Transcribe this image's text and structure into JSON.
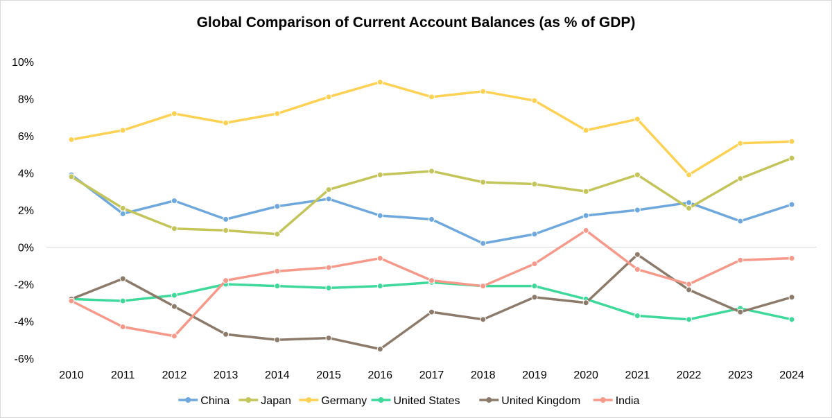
{
  "chart_data": {
    "type": "line",
    "title": "Global Comparison of Current Account Balances (as % of GDP)",
    "xlabel": "",
    "ylabel": "",
    "categories": [
      "2010",
      "2011",
      "2012",
      "2013",
      "2014",
      "2015",
      "2016",
      "2017",
      "2018",
      "2019",
      "2020",
      "2021",
      "2022",
      "2023",
      "2024"
    ],
    "y_ticks": [
      "10%",
      "8%",
      "6%",
      "4%",
      "2%",
      "0%",
      "-2%",
      "-4%",
      "-6%"
    ],
    "ylim": [
      -6,
      10
    ],
    "grid": false,
    "zero_line": true,
    "legend_position": "bottom",
    "series": [
      {
        "name": "China",
        "color": "#6fa8dc",
        "values": [
          3.9,
          1.8,
          2.5,
          1.5,
          2.2,
          2.6,
          1.7,
          1.5,
          0.2,
          0.7,
          1.7,
          2.0,
          2.4,
          1.4,
          2.3
        ]
      },
      {
        "name": "Japan",
        "color": "#c3c45a",
        "values": [
          3.8,
          2.1,
          1.0,
          0.9,
          0.7,
          3.1,
          3.9,
          4.1,
          3.5,
          3.4,
          3.0,
          3.9,
          2.1,
          3.7,
          4.8
        ]
      },
      {
        "name": "Germany",
        "color": "#fdd154",
        "values": [
          5.8,
          6.3,
          7.2,
          6.7,
          7.2,
          8.1,
          8.9,
          8.1,
          8.4,
          7.9,
          6.3,
          6.9,
          3.9,
          5.6,
          5.7
        ]
      },
      {
        "name": "United States",
        "color": "#3fd89b",
        "values": [
          -2.8,
          -2.9,
          -2.6,
          -2.0,
          -2.1,
          -2.2,
          -2.1,
          -1.9,
          -2.1,
          -2.1,
          -2.8,
          -3.7,
          -3.9,
          -3.3,
          -3.9
        ]
      },
      {
        "name": "United Kingdom",
        "color": "#8c7b6b",
        "values": [
          -2.8,
          -1.7,
          -3.2,
          -4.7,
          -5.0,
          -4.9,
          -5.5,
          -3.5,
          -3.9,
          -2.7,
          -3.0,
          -0.4,
          -2.3,
          -3.5,
          -2.7
        ]
      },
      {
        "name": "India",
        "color": "#f59a8a",
        "values": [
          -2.9,
          -4.3,
          -4.8,
          -1.8,
          -1.3,
          -1.1,
          -0.6,
          -1.8,
          -2.1,
          -0.9,
          0.9,
          -1.2,
          -2.0,
          -0.7,
          -0.6
        ]
      }
    ]
  }
}
